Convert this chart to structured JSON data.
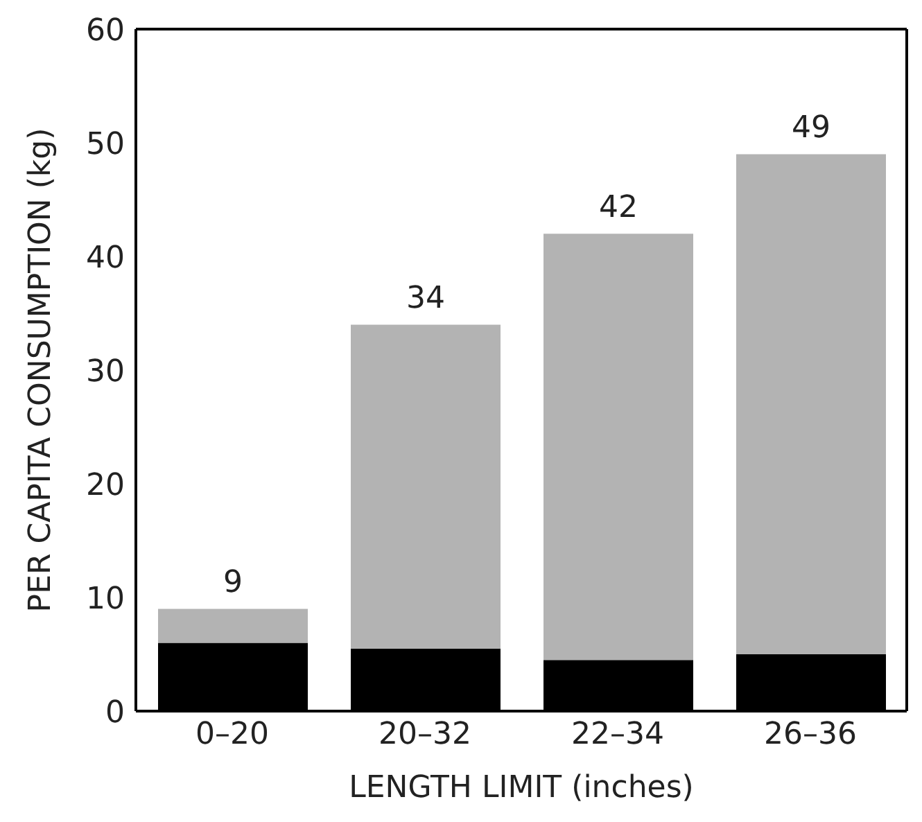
{
  "chart_data": {
    "type": "bar",
    "xlabel": "LENGTH LIMIT (inches)",
    "ylabel": "PER CAPITA CONSUMPTION (kg)",
    "categories": [
      "0–20",
      "20–32",
      "22–34",
      "26–36"
    ],
    "stacked": true,
    "series": [
      {
        "color": "#000000",
        "values": [
          6,
          5.5,
          4.5,
          5
        ]
      },
      {
        "color": "#b3b3b3",
        "values": [
          3,
          28.5,
          37.5,
          44
        ]
      }
    ],
    "totals": [
      "9",
      "34",
      "42",
      "49"
    ],
    "ylim": [
      0,
      60
    ],
    "yticks": [
      0,
      10,
      20,
      30,
      40,
      50,
      60
    ],
    "grid": false,
    "legend": false
  }
}
